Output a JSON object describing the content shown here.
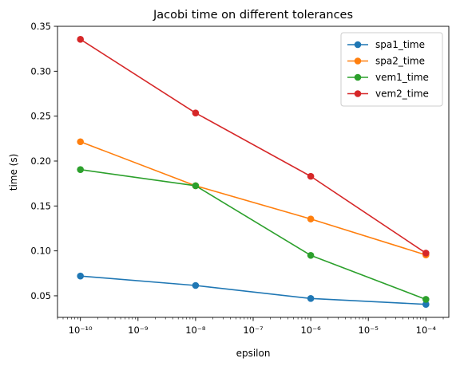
{
  "chart_data": {
    "type": "line",
    "title": "Jacobi time on different tolerances",
    "xlabel": "epsilon",
    "ylabel": "time (s)",
    "xscale": "log",
    "x": [
      1e-10,
      1e-08,
      1e-06,
      0.0001
    ],
    "xlim": [
      4e-11,
      0.00025
    ],
    "ylim": [
      0.026,
      0.35
    ],
    "xticks": [
      {
        "value": 1e-10,
        "label": "10⁻¹⁰"
      },
      {
        "value": 1e-09,
        "label": "10⁻⁹"
      },
      {
        "value": 1e-08,
        "label": "10⁻⁸"
      },
      {
        "value": 1e-07,
        "label": "10⁻⁷"
      },
      {
        "value": 1e-06,
        "label": "10⁻⁶"
      },
      {
        "value": 1e-05,
        "label": "10⁻⁵"
      },
      {
        "value": 0.0001,
        "label": "10⁻⁴"
      }
    ],
    "yticks": [
      {
        "value": 0.05,
        "label": "0.05"
      },
      {
        "value": 0.1,
        "label": "0.10"
      },
      {
        "value": 0.15,
        "label": "0.15"
      },
      {
        "value": 0.2,
        "label": "0.20"
      },
      {
        "value": 0.25,
        "label": "0.25"
      },
      {
        "value": 0.3,
        "label": "0.30"
      },
      {
        "value": 0.35,
        "label": "0.35"
      }
    ],
    "grid": false,
    "legend_position": "top-right",
    "series": [
      {
        "name": "spa1_time",
        "color": "#1f77b4",
        "values": [
          0.072,
          0.0615,
          0.047,
          0.0405
        ]
      },
      {
        "name": "spa2_time",
        "color": "#ff7f0e",
        "values": [
          0.2215,
          0.1725,
          0.1355,
          0.0955
        ]
      },
      {
        "name": "vem1_time",
        "color": "#2ca02c",
        "values": [
          0.1905,
          0.1725,
          0.095,
          0.046
        ]
      },
      {
        "name": "vem2_time",
        "color": "#d62728",
        "values": [
          0.3355,
          0.2535,
          0.183,
          0.0975
        ]
      }
    ]
  }
}
